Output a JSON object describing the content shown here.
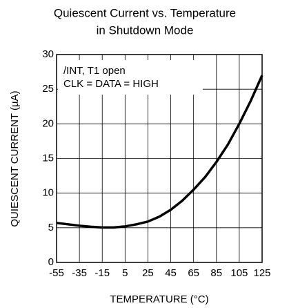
{
  "chart_data": {
    "type": "line",
    "title": [
      "Quiescent Current vs. Temperature",
      "in Shutdown Mode"
    ],
    "xlabel": "TEMPERATURE (°C)",
    "ylabel": "QUIESCENT CURRENT (µA)",
    "annotations": [
      "/INT, T1 open",
      "CLK = DATA = HIGH"
    ],
    "x": [
      -55,
      -45,
      -35,
      -25,
      -15,
      -5,
      5,
      15,
      25,
      35,
      45,
      55,
      65,
      75,
      85,
      95,
      105,
      115,
      125
    ],
    "series": [
      {
        "name": "Quiescent Current",
        "color": "#000000",
        "values": [
          5.7,
          5.5,
          5.3,
          5.15,
          5.05,
          5.05,
          5.2,
          5.5,
          5.9,
          6.6,
          7.6,
          8.9,
          10.5,
          12.3,
          14.5,
          17.0,
          20.0,
          23.3,
          27.0
        ]
      }
    ],
    "xlim": [
      -55,
      125
    ],
    "xticks": [
      -55,
      -35,
      -15,
      5,
      25,
      45,
      65,
      85,
      105,
      125
    ],
    "ylim": [
      0,
      30
    ],
    "yticks": [
      0,
      5,
      10,
      15,
      20,
      25,
      30
    ],
    "grid": true
  }
}
